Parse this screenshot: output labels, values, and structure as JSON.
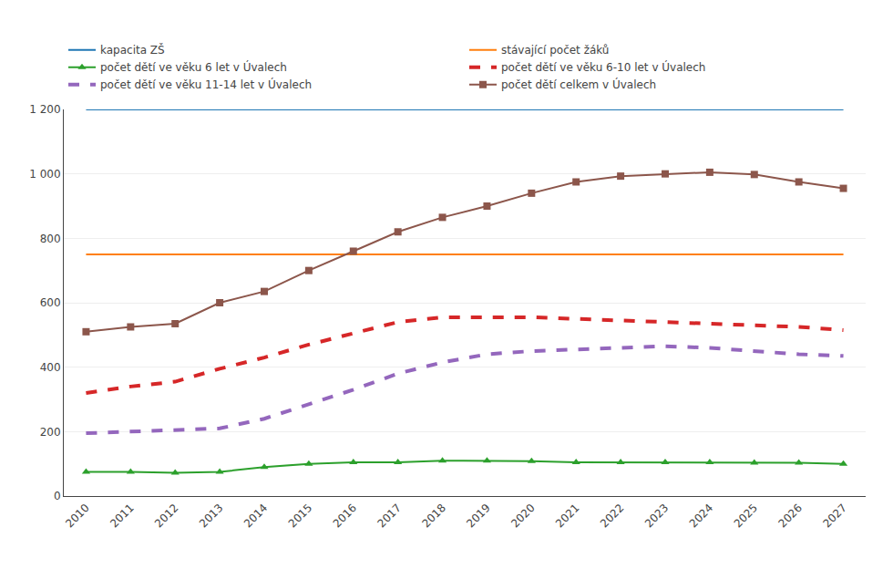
{
  "chart_data": {
    "type": "line",
    "x": [
      2010,
      2011,
      2012,
      2013,
      2014,
      2015,
      2016,
      2017,
      2018,
      2019,
      2020,
      2021,
      2022,
      2023,
      2024,
      2025,
      2026,
      2027
    ],
    "xlim": [
      2009.5,
      2027.5
    ],
    "xticks": [
      2010,
      2011,
      2012,
      2013,
      2014,
      2015,
      2016,
      2017,
      2018,
      2019,
      2020,
      2021,
      2022,
      2023,
      2024,
      2025,
      2026,
      2027
    ],
    "ylim": [
      0,
      1200
    ],
    "yticks": [
      0,
      200,
      400,
      600,
      800,
      {
        "value": 1000,
        "label": "1 000"
      },
      {
        "value": 1200,
        "label": "1 200"
      }
    ],
    "grid": "y",
    "legend": "top",
    "series": [
      {
        "name": "kapacita ZŠ",
        "line_style": "solid",
        "marker": "none",
        "values": [
          1200,
          1200,
          1200,
          1200,
          1200,
          1200,
          1200,
          1200,
          1200,
          1200,
          1200,
          1200,
          1200,
          1200,
          1200,
          1200,
          1200,
          1200
        ]
      },
      {
        "name": "stávající počet žáků",
        "line_style": "solid",
        "marker": "none",
        "values": [
          750,
          750,
          750,
          750,
          750,
          750,
          750,
          750,
          750,
          750,
          750,
          750,
          750,
          750,
          750,
          750,
          750,
          750
        ]
      },
      {
        "name": "počet dětí ve věku 6 let v Úvalech",
        "line_style": "solid",
        "marker": "triangle",
        "values": [
          75,
          75,
          72,
          75,
          90,
          100,
          105,
          105,
          110,
          110,
          108,
          105,
          105,
          105,
          105,
          103,
          103,
          100
        ]
      },
      {
        "name": "počet dětí ve věku 6-10 let v Úvalech",
        "line_style": "dashed",
        "marker": "none",
        "values": [
          320,
          340,
          355,
          395,
          430,
          470,
          505,
          540,
          555,
          555,
          555,
          550,
          545,
          540,
          535,
          530,
          525,
          515
        ]
      },
      {
        "name": "počet dětí ve věku 11-14 let v Úvalech",
        "line_style": "dashed",
        "marker": "none",
        "values": [
          195,
          200,
          205,
          210,
          240,
          285,
          330,
          380,
          415,
          440,
          450,
          455,
          460,
          465,
          460,
          450,
          440,
          435
        ]
      },
      {
        "name": "počet dětí celkem v Úvalech",
        "line_style": "solid",
        "marker": "square",
        "values": [
          510,
          525,
          535,
          600,
          635,
          700,
          760,
          820,
          865,
          900,
          940,
          975,
          993,
          1000,
          1005,
          998,
          975,
          955
        ]
      }
    ]
  }
}
